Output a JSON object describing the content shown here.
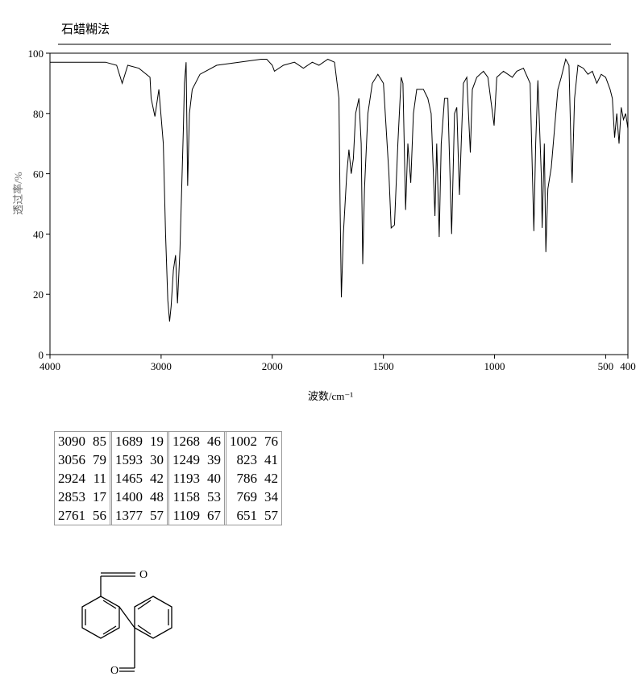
{
  "chart_data": {
    "type": "line",
    "title": "石蜡糊法",
    "x_label": "波数/cm⁻¹",
    "y_label": "透过率/%",
    "xlim": [
      4000,
      400
    ],
    "xscale_break": 2000,
    "xticks": [
      4000,
      3000,
      2000,
      1500,
      1000,
      500,
      400
    ],
    "ylim": [
      0,
      100
    ],
    "yticks": [
      0,
      20,
      40,
      60,
      80,
      100
    ],
    "color": "#000000",
    "x": [
      4000,
      3800,
      3500,
      3400,
      3350,
      3300,
      3200,
      3100,
      3090,
      3056,
      3020,
      2980,
      2960,
      2940,
      2924,
      2910,
      2890,
      2870,
      2853,
      2830,
      2800,
      2790,
      2775,
      2761,
      2745,
      2720,
      2650,
      2500,
      2300,
      2100,
      2050,
      2000,
      1990,
      1950,
      1900,
      1860,
      1820,
      1790,
      1750,
      1720,
      1700,
      1695,
      1689,
      1680,
      1665,
      1655,
      1645,
      1635,
      1625,
      1610,
      1600,
      1593,
      1585,
      1570,
      1550,
      1525,
      1500,
      1475,
      1465,
      1450,
      1435,
      1420,
      1412,
      1400,
      1390,
      1377,
      1365,
      1350,
      1320,
      1300,
      1285,
      1268,
      1260,
      1249,
      1240,
      1225,
      1210,
      1193,
      1180,
      1170,
      1158,
      1150,
      1140,
      1125,
      1109,
      1100,
      1080,
      1050,
      1030,
      1002,
      990,
      960,
      920,
      900,
      870,
      840,
      823,
      815,
      805,
      790,
      786,
      776,
      769,
      760,
      745,
      730,
      715,
      700,
      680,
      665,
      655,
      651,
      640,
      625,
      600,
      580,
      560,
      540,
      520,
      500,
      480,
      470,
      460,
      450,
      440,
      430,
      420,
      410,
      400
    ],
    "values": [
      97,
      97,
      97,
      96,
      90,
      96,
      95,
      92,
      85,
      79,
      88,
      70,
      40,
      18,
      11,
      16,
      28,
      33,
      17,
      35,
      75,
      90,
      97,
      56,
      80,
      88,
      93,
      96,
      97,
      98,
      98,
      96,
      94,
      96,
      97,
      95,
      97,
      96,
      98,
      97,
      85,
      50,
      19,
      40,
      60,
      68,
      60,
      65,
      80,
      85,
      70,
      30,
      55,
      80,
      90,
      93,
      90,
      60,
      42,
      43,
      70,
      92,
      90,
      48,
      70,
      57,
      80,
      88,
      88,
      85,
      80,
      46,
      70,
      39,
      70,
      85,
      85,
      40,
      80,
      82,
      53,
      70,
      90,
      92,
      67,
      88,
      92,
      94,
      92,
      76,
      92,
      94,
      92,
      94,
      95,
      90,
      41,
      70,
      91,
      60,
      42,
      70,
      34,
      55,
      62,
      75,
      88,
      92,
      98,
      96,
      65,
      57,
      85,
      96,
      95,
      93,
      94,
      90,
      93,
      92,
      88,
      85,
      72,
      80,
      70,
      82,
      78,
      80,
      75
    ]
  },
  "table": {
    "rows": [
      [
        [
          3090,
          85
        ],
        [
          1689,
          19
        ],
        [
          1268,
          46
        ],
        [
          1002,
          76
        ]
      ],
      [
        [
          3056,
          79
        ],
        [
          1593,
          30
        ],
        [
          1249,
          39
        ],
        [
          823,
          41
        ]
      ],
      [
        [
          2924,
          11
        ],
        [
          1465,
          42
        ],
        [
          1193,
          40
        ],
        [
          786,
          42
        ]
      ],
      [
        [
          2853,
          17
        ],
        [
          1400,
          48
        ],
        [
          1158,
          53
        ],
        [
          769,
          34
        ]
      ],
      [
        [
          2761,
          56
        ],
        [
          1377,
          57
        ],
        [
          1109,
          67
        ],
        [
          651,
          57
        ]
      ]
    ]
  },
  "structure": {
    "labels": [
      "O",
      "O"
    ]
  }
}
